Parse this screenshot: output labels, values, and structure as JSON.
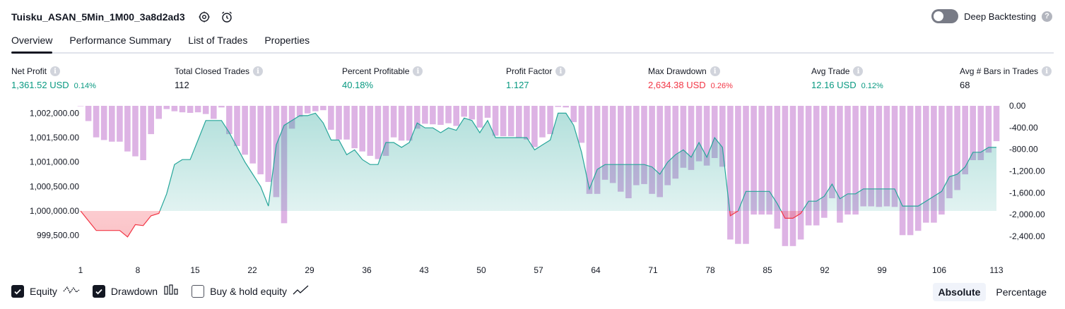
{
  "header": {
    "title": "Tuisku_ASAN_5Min_1M00_3a8d2ad3",
    "deep_backtesting_label": "Deep Backtesting",
    "deep_backtesting_enabled": false
  },
  "tabs": [
    {
      "label": "Overview",
      "active": true
    },
    {
      "label": "Performance Summary",
      "active": false
    },
    {
      "label": "List of Trades",
      "active": false
    },
    {
      "label": "Properties",
      "active": false
    }
  ],
  "metrics": {
    "net_profit": {
      "label": "Net Profit",
      "value": "1,361.52 USD",
      "sub": "0.14%"
    },
    "total_closed_trades": {
      "label": "Total Closed Trades",
      "value": "112"
    },
    "percent_profitable": {
      "label": "Percent Profitable",
      "value": "40.18%"
    },
    "profit_factor": {
      "label": "Profit Factor",
      "value": "1.127"
    },
    "max_drawdown": {
      "label": "Max Drawdown",
      "value": "2,634.38 USD",
      "sub": "0.26%"
    },
    "avg_trade": {
      "label": "Avg Trade",
      "value": "12.16 USD",
      "sub": "0.12%"
    },
    "avg_bars": {
      "label": "Avg # Bars in Trades",
      "value": "68"
    }
  },
  "legend": {
    "equity": "Equity",
    "drawdown": "Drawdown",
    "buy_hold": "Buy & hold equity",
    "equity_checked": true,
    "drawdown_checked": true,
    "buy_hold_checked": false
  },
  "mode": {
    "absolute": "Absolute",
    "percentage": "Percentage",
    "active": "Absolute"
  },
  "chart_data": {
    "type": "line",
    "x_ticks": [
      "1",
      "8",
      "15",
      "22",
      "29",
      "36",
      "43",
      "50",
      "57",
      "64",
      "71",
      "78",
      "85",
      "92",
      "99",
      "106",
      "113"
    ],
    "x_tick_values": [
      1,
      8,
      15,
      22,
      29,
      36,
      43,
      50,
      57,
      64,
      71,
      78,
      85,
      92,
      99,
      106,
      113
    ],
    "xlim": [
      1,
      113
    ],
    "left_axis": {
      "ticks": [
        "1,002,000.00",
        "1,001,500.00",
        "1,001,000.00",
        "1,000,500.00",
        "1,000,000.00",
        "999,500.00"
      ],
      "tick_values": [
        1002000,
        1001500,
        1001000,
        1000500,
        1000000,
        999500
      ],
      "ylim": [
        999250,
        1002150
      ]
    },
    "right_axis": {
      "ticks": [
        "0.00",
        "-400.00",
        "-800.00",
        "-1,200.00",
        "-1,600.00",
        "-2,000.00",
        "-2,400.00"
      ],
      "tick_values": [
        0,
        -400,
        -800,
        -1200,
        -1600,
        -2000,
        -2400
      ],
      "ylim": [
        -2700,
        0
      ]
    },
    "baseline": 1000000,
    "series": [
      {
        "name": "Equity",
        "values": [
          1000000,
          999800,
          999600,
          999600,
          999600,
          999600,
          999470,
          999720,
          999700,
          999900,
          999950,
          1000350,
          1000950,
          1001050,
          1001050,
          1001450,
          1001850,
          1001850,
          1001850,
          1001600,
          1001300,
          1001000,
          1000750,
          1000500,
          1000100,
          1001350,
          1001750,
          1001850,
          1001950,
          1001950,
          1002000,
          1001800,
          1001450,
          1001450,
          1001150,
          1001250,
          1001050,
          1000950,
          1000950,
          1001400,
          1001400,
          1001300,
          1001400,
          1001800,
          1001700,
          1001700,
          1001600,
          1001700,
          1001650,
          1001900,
          1001850,
          1001600,
          1001850,
          1001500,
          1001500,
          1001500,
          1001500,
          1001500,
          1001250,
          1001350,
          1001450,
          1002000,
          1002000,
          1001750,
          1001200,
          1000450,
          1000850,
          1000950,
          1000950,
          1000950,
          1000950,
          1000950,
          1000950,
          1000900,
          1000750,
          1001000,
          1001150,
          1001250,
          1001100,
          1001400,
          1001100,
          1001500,
          1001300,
          999900,
          1000000,
          1000400,
          1000400,
          1000400,
          1000400,
          1000150,
          999850,
          999850,
          999950,
          1000200,
          1000200,
          1000300,
          1000550,
          1000250,
          1000350,
          1000350,
          1000450,
          1000450,
          1000450,
          1000450,
          1000450,
          1000100,
          1000100,
          1000100,
          1000200,
          1000300,
          1000400,
          1000700,
          1000750,
          1000900,
          1001200,
          1001200,
          1001300,
          1001300
        ]
      },
      {
        "name": "Drawdown",
        "values": [
          0,
          -280,
          -580,
          -630,
          -660,
          -660,
          -840,
          -930,
          -1000,
          -520,
          -240,
          -60,
          -100,
          -120,
          -130,
          -120,
          -150,
          -240,
          -30,
          -520,
          -740,
          -900,
          -1060,
          -1260,
          -1400,
          -1680,
          -2160,
          -420,
          -200,
          -140,
          -100,
          -80,
          -440,
          -620,
          -620,
          -780,
          -840,
          -920,
          -980,
          -920,
          -580,
          -640,
          -640,
          -420,
          -330,
          -340,
          -350,
          -320,
          -370,
          -200,
          -250,
          -400,
          -220,
          -550,
          -560,
          -560,
          -580,
          -620,
          -760,
          -580,
          -520,
          -20,
          -30,
          -300,
          -680,
          -1620,
          -1620,
          -1360,
          -1420,
          -1580,
          -1700,
          -1460,
          -1440,
          -1620,
          -1680,
          -1460,
          -1340,
          -1140,
          -1180,
          -1020,
          -1100,
          -960,
          -1120,
          -2460,
          -2540,
          -2540,
          -2000,
          -2000,
          -2000,
          -2260,
          -2580,
          -2580,
          -2460,
          -2200,
          -2200,
          -2060,
          -1700,
          -2150,
          -2000,
          -2000,
          -1850,
          -1850,
          -1860,
          -1850,
          -1860,
          -2380,
          -2380,
          -2300,
          -2150,
          -2150,
          -2000,
          -1700,
          -1550,
          -1260,
          -1000,
          -1000,
          -860,
          -650
        ]
      }
    ],
    "colors": {
      "equity_up": "#26a69a",
      "equity_down": "#f23645",
      "drawdown_bar": "#ce93d8",
      "axis_text": "#131722"
    }
  }
}
